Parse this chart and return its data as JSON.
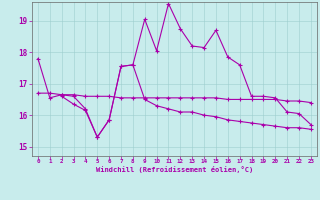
{
  "xlabel": "Windchill (Refroidissement éolien,°C)",
  "xlim": [
    -0.5,
    23.5
  ],
  "ylim": [
    14.7,
    19.6
  ],
  "xticks": [
    0,
    1,
    2,
    3,
    4,
    5,
    6,
    7,
    8,
    9,
    10,
    11,
    12,
    13,
    14,
    15,
    16,
    17,
    18,
    19,
    20,
    21,
    22,
    23
  ],
  "yticks": [
    15,
    16,
    17,
    18,
    19
  ],
  "bg_color": "#c8ecec",
  "line_color": "#aa00aa",
  "line1_x": [
    0,
    1,
    2,
    3,
    4,
    5,
    6,
    7,
    8,
    9,
    10,
    11,
    12,
    13,
    14,
    15,
    16,
    17,
    18,
    19,
    20,
    21,
    22,
    23
  ],
  "line1_y": [
    17.8,
    16.55,
    16.65,
    16.6,
    16.2,
    15.3,
    15.85,
    17.55,
    17.6,
    19.05,
    18.05,
    19.55,
    18.75,
    18.2,
    18.15,
    18.7,
    17.85,
    17.6,
    16.6,
    16.6,
    16.55,
    16.1,
    16.05,
    15.7
  ],
  "line2_x": [
    0,
    1,
    2,
    3,
    4,
    5,
    6,
    7,
    8,
    9,
    10,
    11,
    12,
    13,
    14,
    15,
    16,
    17,
    18,
    19,
    20,
    21,
    22,
    23
  ],
  "line2_y": [
    16.7,
    16.7,
    16.65,
    16.65,
    16.6,
    16.6,
    16.6,
    16.55,
    16.55,
    16.55,
    16.55,
    16.55,
    16.55,
    16.55,
    16.55,
    16.55,
    16.5,
    16.5,
    16.5,
    16.5,
    16.5,
    16.45,
    16.45,
    16.4
  ],
  "line3_x": [
    2,
    3,
    4,
    5,
    6,
    7,
    8,
    9,
    10,
    11,
    12,
    13,
    14,
    15,
    16,
    17,
    18,
    19,
    20,
    21,
    22,
    23
  ],
  "line3_y": [
    16.6,
    16.35,
    16.15,
    15.3,
    15.85,
    17.55,
    17.6,
    16.5,
    16.3,
    16.2,
    16.1,
    16.1,
    16.0,
    15.95,
    15.85,
    15.8,
    15.75,
    15.7,
    15.65,
    15.6,
    15.6,
    15.55
  ]
}
